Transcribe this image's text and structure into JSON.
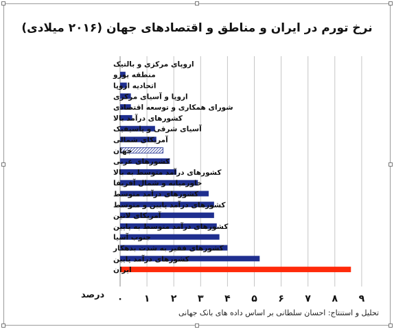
{
  "title": "نرخ تورم در ایران و مناطق و اقتصادهای جهان (۲۰۱۶ میلادی)",
  "credit": "تحلیل و استنتاج: احسان سلطانی بر اساس داده های بانک جهانی",
  "chart_data": {
    "type": "bar",
    "orientation": "horizontal",
    "title": "نرخ تورم در ایران و مناطق و اقتصادهای جهان (۲۰۱۶ میلادی)",
    "xlabel": "درصد",
    "ylabel": "",
    "xlim": [
      0,
      9
    ],
    "xticks": [
      "۰",
      "۱",
      "۲",
      "۳",
      "۴",
      "۵",
      "۶",
      "۷",
      "۸",
      "۹"
    ],
    "grid": true,
    "legend": "none",
    "categories": [
      "اروپای مرکزی و بالتیک",
      "منطقه یورو",
      "اتحادیه اروپا",
      "اروپا و آسیای مرکزی",
      "شورای همکاری و توسعه اقتصادی",
      "کشورهای درآمد بالا",
      "آسیای شرقی و پاسیفیک",
      "آمریکای شمالی",
      "جهان",
      "کشورهای عربی",
      "کشورهای درآمد متوسط به بالا",
      "خاورمیانه و شمال آفریقا",
      "کشورهای درآمد متوسط",
      "کشورهای درآمد پایین و متوسط",
      "آمریکای لاتین",
      "کشورهای درآمد متوسط به پایین",
      "جنوب آسیا",
      "کشورهای فقیر به شدت بدهکار",
      "کشورهای درآمد پایین",
      "ایران"
    ],
    "values": [
      0.0,
      0.2,
      0.25,
      0.4,
      0.4,
      0.45,
      1.3,
      1.35,
      1.6,
      1.85,
      2.1,
      2.9,
      3.3,
      3.5,
      3.5,
      3.6,
      3.7,
      4.0,
      5.2,
      8.6
    ],
    "colors": {
      "default": "#1f2f8f",
      "world": "#1f2f8f",
      "iran": "#ff2a0a",
      "grid": "#c4c4c4"
    },
    "bar_styles": {
      "world": "hatched",
      "iran": "solid-red",
      "others": "solid-blue"
    }
  }
}
